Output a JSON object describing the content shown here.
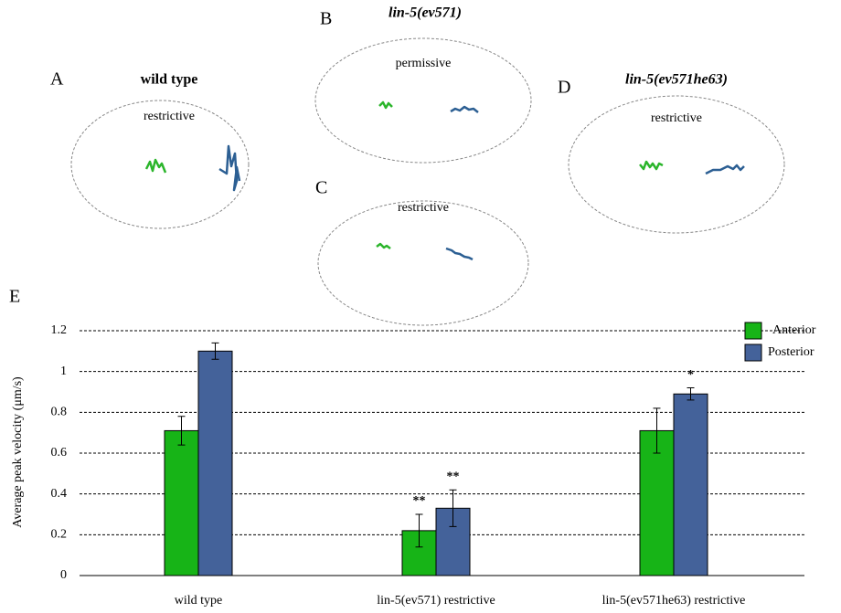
{
  "panels": [
    {
      "label": "A",
      "title": "wild type",
      "condition": "restrictive"
    },
    {
      "label": "B",
      "title": "lin-5(ev571)",
      "condition": "permissive"
    },
    {
      "label": "C",
      "condition": "restrictive"
    },
    {
      "label": "D",
      "title": "lin-5(ev571he63)",
      "condition": "restrictive"
    }
  ],
  "chart_data": {
    "type": "bar",
    "label": "E",
    "ylabel": "Average peak velocity (μm/s)",
    "categories": [
      "wild type",
      "lin-5(ev571) restrictive",
      "lin-5(ev571he63) restrictive"
    ],
    "series": [
      {
        "name": "Anterior",
        "color": "#17b417",
        "values": [
          0.71,
          0.22,
          0.71
        ],
        "errors": [
          0.07,
          0.08,
          0.11
        ],
        "annotations": [
          null,
          "**",
          null
        ]
      },
      {
        "name": "Posterior",
        "color": "#44629a",
        "values": [
          1.1,
          0.33,
          0.89
        ],
        "errors": [
          0.04,
          0.09,
          0.03
        ],
        "annotations": [
          null,
          "**",
          "*"
        ]
      }
    ],
    "ylim": [
      0,
      1.2
    ],
    "yticks": [
      0,
      0.2,
      0.4,
      0.6,
      0.8,
      1,
      1.2
    ],
    "grid": true,
    "legend": "top-right"
  }
}
